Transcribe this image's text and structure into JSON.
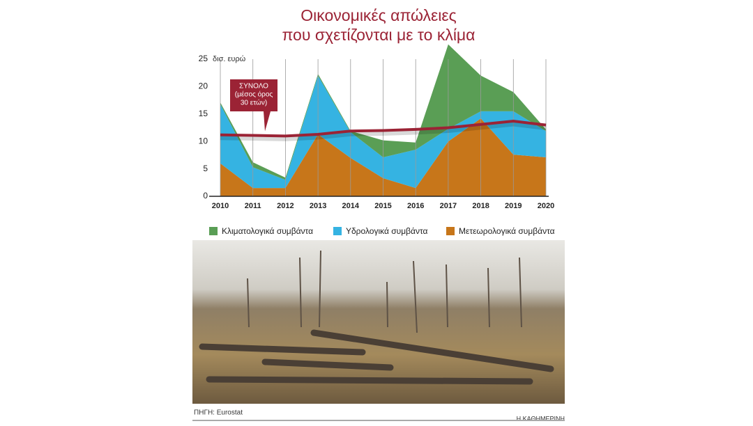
{
  "chart_data": {
    "type": "stacked-area",
    "title": [
      "Οικονομικές απώλειες",
      "που σχετίζονται με το κλίμα"
    ],
    "y_unit": "δισ. ευρώ",
    "x": [
      2010,
      2011,
      2012,
      2013,
      2014,
      2015,
      2016,
      2017,
      2018,
      2019,
      2020
    ],
    "xlim": [
      2010,
      2020
    ],
    "ylim": [
      0,
      28
    ],
    "yticks": [
      0,
      5,
      10,
      15,
      20,
      25
    ],
    "series": [
      {
        "name": "Μετεωρολογικά συμβάντα",
        "color": "#c7761a",
        "values": [
          6,
          1.5,
          1.5,
          11.3,
          7,
          3.3,
          1.5,
          10,
          14.2,
          7.6,
          7.1
        ]
      },
      {
        "name": "Υδρολογικά συμβάντα",
        "color": "#35b3e2",
        "values": [
          10.8,
          3.8,
          1.5,
          10.7,
          4.7,
          3.8,
          7,
          2.3,
          1.3,
          7.9,
          4.8
        ]
      },
      {
        "name": "Κλιματολογικά συμβάντα",
        "color": "#5a9e55",
        "values": [
          0.3,
          0.9,
          0.4,
          0.3,
          0.2,
          3.1,
          1.3,
          15.4,
          6.5,
          3.5,
          0.3
        ]
      }
    ],
    "line": {
      "label": [
        "ΣΥΝΟΛΟ",
        "(μέσος όρος",
        "30 ετών)"
      ],
      "color": "#9b2335",
      "values": [
        11.2,
        11.1,
        11.0,
        11.3,
        11.9,
        12.0,
        12.2,
        12.5,
        13.1,
        13.7,
        13.0
      ]
    },
    "source": "ΠΗΓΗ: Eurostat",
    "publisher": "Η ΚΑΘΗΜΕΡΙΝΗ"
  }
}
